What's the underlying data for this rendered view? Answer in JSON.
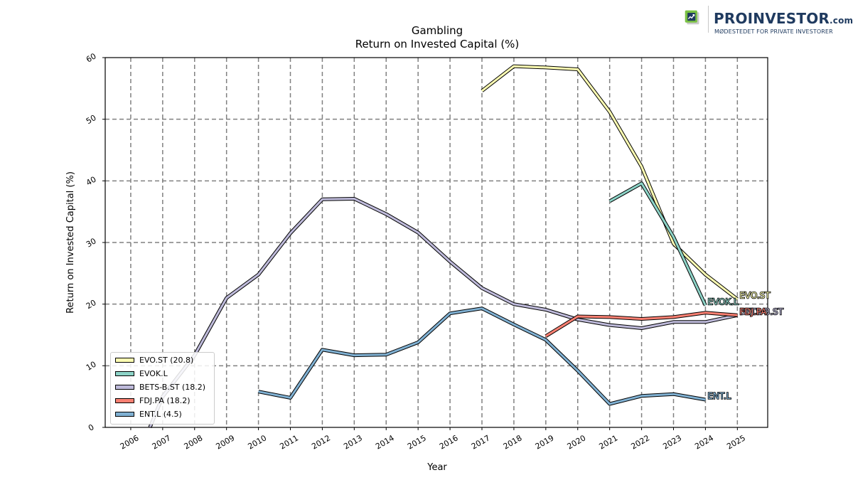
{
  "brand": {
    "name": "PROINVESTOR",
    "suffix": ".com",
    "tagline": "MØDESTEDET FOR PRIVATE INVESTORER"
  },
  "chart_data": {
    "type": "line",
    "title": "Gambling",
    "subtitle": "Return on Invested Capital (%)",
    "xlabel": "Year",
    "ylabel": "Return on Invested Capital (%)",
    "x": [
      2006,
      2007,
      2008,
      2009,
      2010,
      2011,
      2012,
      2013,
      2014,
      2015,
      2016,
      2017,
      2018,
      2019,
      2020,
      2021,
      2022,
      2023,
      2024,
      2025
    ],
    "xlim": [
      2005.2,
      2025.95
    ],
    "ylim": [
      0,
      60
    ],
    "yticks": [
      0,
      10,
      20,
      30,
      40,
      50,
      60
    ],
    "grid": true,
    "legend_position": "lower-left",
    "series": [
      {
        "name": "EVO.ST",
        "legend": "EVO.ST (20.8)",
        "color": "#ffffb3",
        "end_label": "EVO.ST",
        "points": [
          [
            2017,
            54.6
          ],
          [
            2018,
            58.6
          ],
          [
            2019,
            58.4
          ],
          [
            2020,
            58.1
          ],
          [
            2021,
            51.2
          ],
          [
            2022,
            42.3
          ],
          [
            2023,
            29.8
          ],
          [
            2024,
            24.8
          ],
          [
            2025,
            20.8
          ]
        ]
      },
      {
        "name": "EVOK.L",
        "legend": "EVOK.L",
        "color": "#8dd3c7",
        "end_label": "EVOK.L",
        "points": [
          [
            2021,
            36.7
          ],
          [
            2022,
            39.6
          ],
          [
            2023,
            30.9
          ],
          [
            2024,
            19.8
          ]
        ]
      },
      {
        "name": "BETS-B.ST",
        "legend": "BETS-B.ST (18.2)",
        "color": "#bebada",
        "end_label": "BETS-B.ST",
        "points": [
          [
            2006.6,
            0
          ],
          [
            2007,
            5.0
          ],
          [
            2008,
            11.7
          ],
          [
            2009,
            21.0
          ],
          [
            2010,
            24.8
          ],
          [
            2011,
            31.5
          ],
          [
            2012,
            37.0
          ],
          [
            2013,
            37.1
          ],
          [
            2014,
            34.6
          ],
          [
            2015,
            31.6
          ],
          [
            2016,
            26.9
          ],
          [
            2017,
            22.6
          ],
          [
            2018,
            20.0
          ],
          [
            2019,
            19.1
          ],
          [
            2020,
            17.5
          ],
          [
            2021,
            16.6
          ],
          [
            2022,
            16.1
          ],
          [
            2023,
            17.1
          ],
          [
            2024,
            17.1
          ],
          [
            2025,
            18.2
          ]
        ]
      },
      {
        "name": "FDJ.PA",
        "legend": "FDJ.PA (18.2)",
        "color": "#fb8072",
        "end_label": "FDJ.PA",
        "points": [
          [
            2019,
            14.8
          ],
          [
            2020,
            18.0
          ],
          [
            2021,
            17.9
          ],
          [
            2022,
            17.6
          ],
          [
            2023,
            17.9
          ],
          [
            2024,
            18.6
          ],
          [
            2025,
            18.2
          ]
        ]
      },
      {
        "name": "ENT.L",
        "legend": "ENT.L (4.5)",
        "color": "#80b1d3",
        "end_label": "ENT.L",
        "points": [
          [
            2010,
            5.8
          ],
          [
            2011,
            4.8
          ],
          [
            2012,
            12.6
          ],
          [
            2013,
            11.7
          ],
          [
            2014,
            11.8
          ],
          [
            2015,
            13.8
          ],
          [
            2016,
            18.5
          ],
          [
            2017,
            19.3
          ],
          [
            2018,
            16.7
          ],
          [
            2019,
            14.2
          ],
          [
            2020,
            9.2
          ],
          [
            2021,
            3.8
          ],
          [
            2022,
            5.1
          ],
          [
            2023,
            5.4
          ],
          [
            2024,
            4.5
          ]
        ]
      }
    ]
  }
}
